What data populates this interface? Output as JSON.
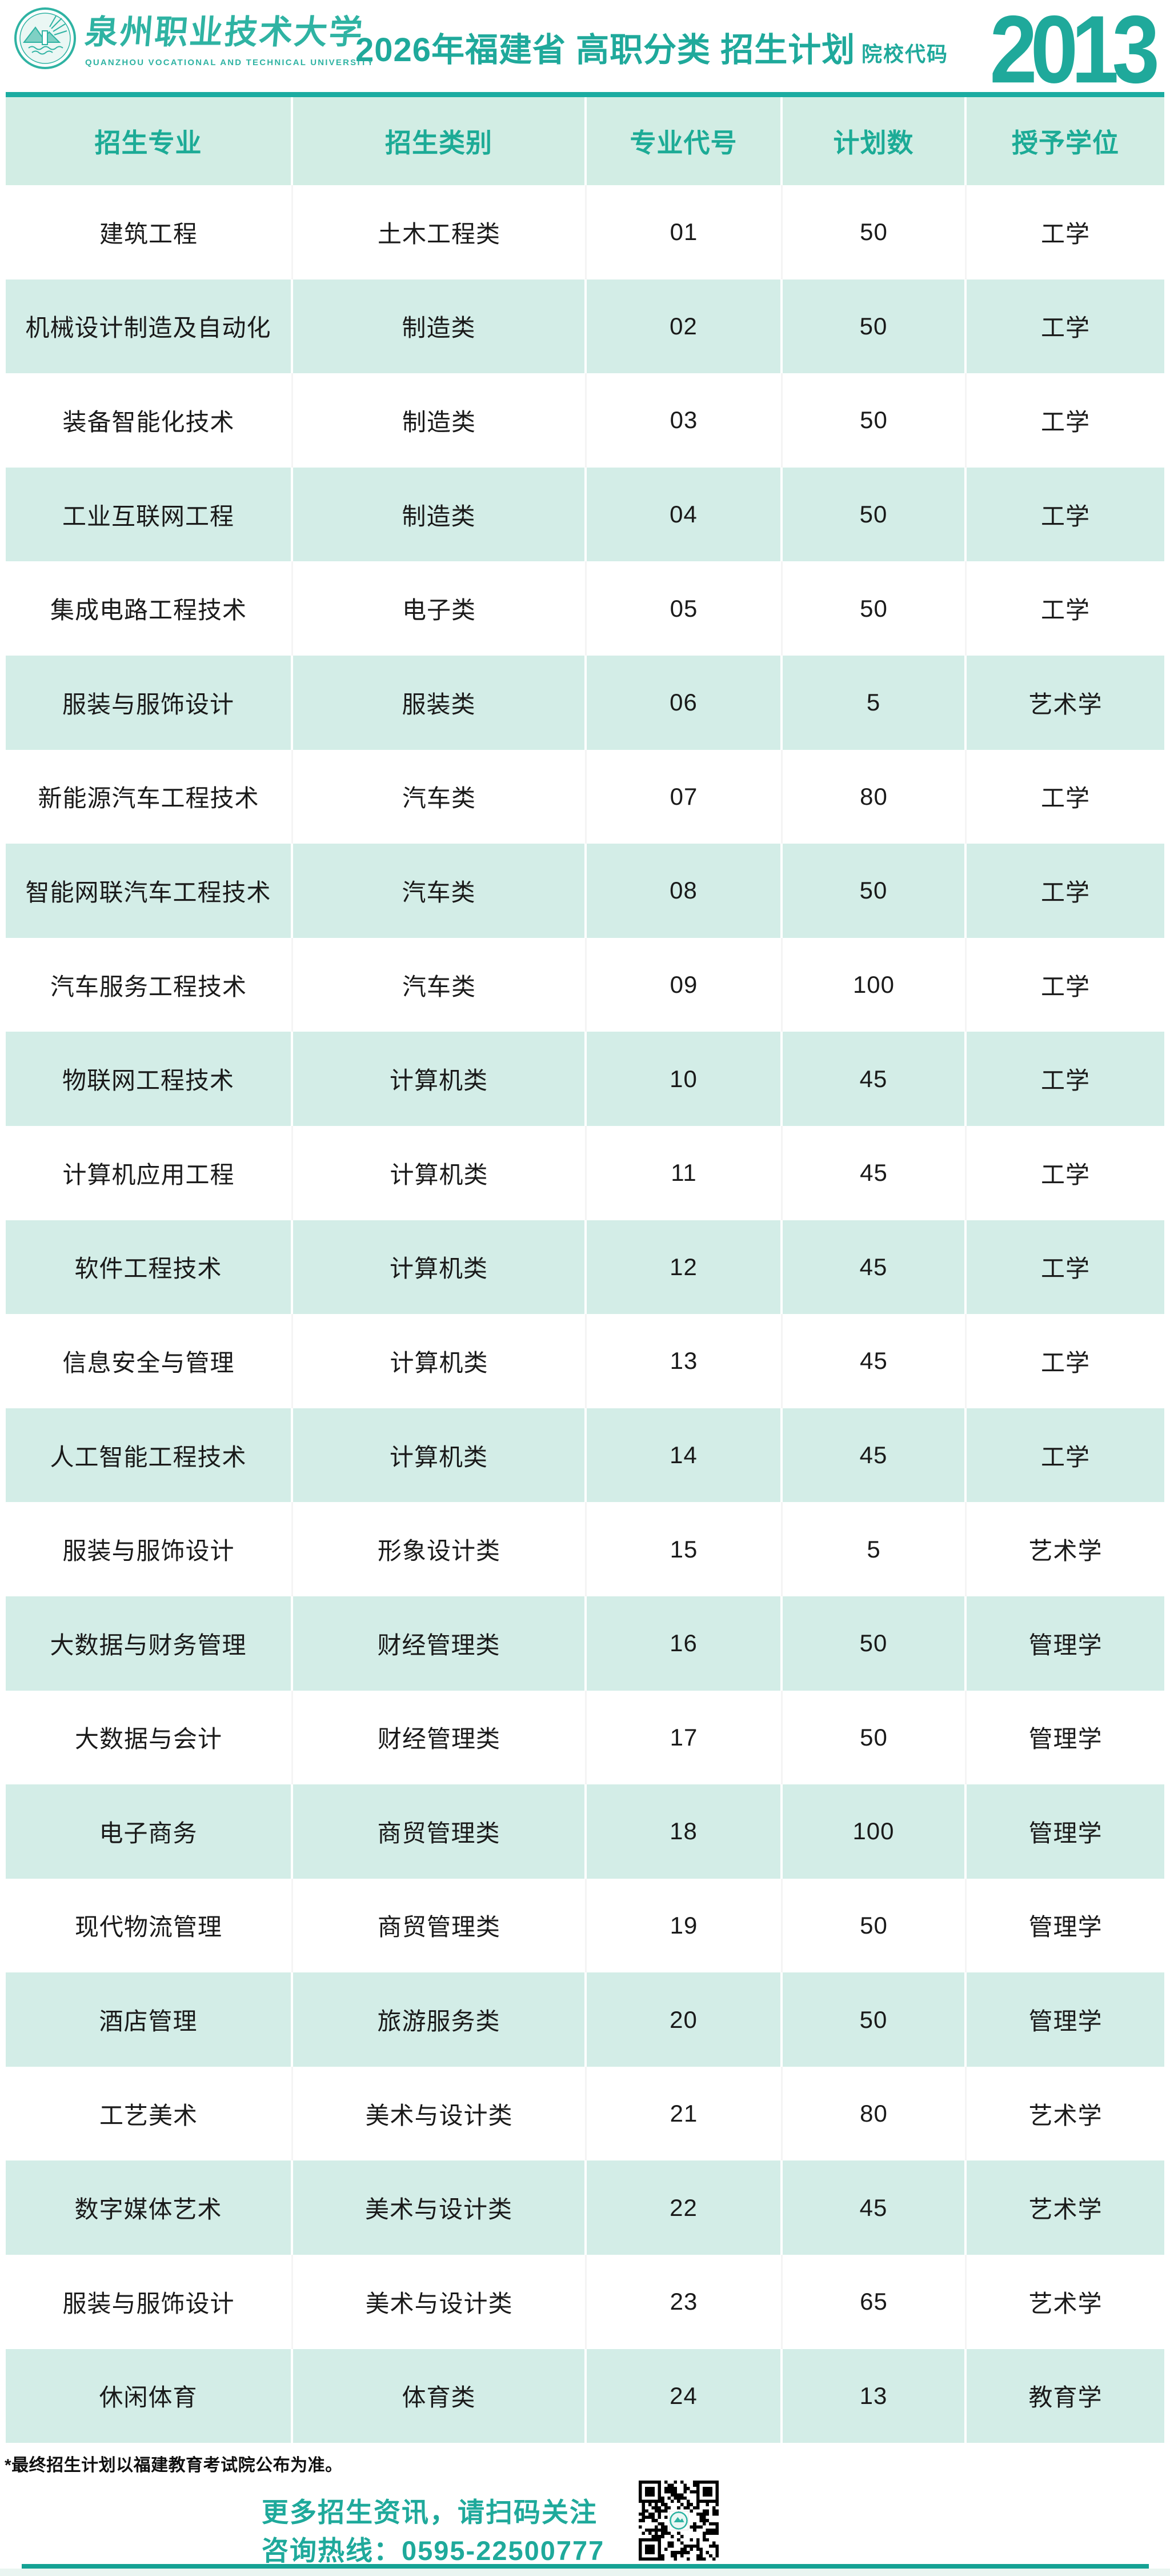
{
  "header": {
    "university_name": "泉州职业技术大学",
    "university_name_en": "QUANZHOU VOCATIONAL AND TECHNICAL UNIVERSITY",
    "title": "2026年福建省 高职分类 招生计划",
    "code_label": "院校代码",
    "code_value": "2013"
  },
  "table": {
    "columns": [
      "招生专业",
      "招生类别",
      "专业代号",
      "计划数",
      "授予学位"
    ],
    "rows": [
      {
        "major": "建筑工程",
        "category": "土木工程类",
        "code": "01",
        "plan": "50",
        "degree": "工学"
      },
      {
        "major": "机械设计制造及自动化",
        "category": "制造类",
        "code": "02",
        "plan": "50",
        "degree": "工学"
      },
      {
        "major": "装备智能化技术",
        "category": "制造类",
        "code": "03",
        "plan": "50",
        "degree": "工学"
      },
      {
        "major": "工业互联网工程",
        "category": "制造类",
        "code": "04",
        "plan": "50",
        "degree": "工学"
      },
      {
        "major": "集成电路工程技术",
        "category": "电子类",
        "code": "05",
        "plan": "50",
        "degree": "工学"
      },
      {
        "major": "服装与服饰设计",
        "category": "服装类",
        "code": "06",
        "plan": "5",
        "degree": "艺术学"
      },
      {
        "major": "新能源汽车工程技术",
        "category": "汽车类",
        "code": "07",
        "plan": "80",
        "degree": "工学"
      },
      {
        "major": "智能网联汽车工程技术",
        "category": "汽车类",
        "code": "08",
        "plan": "50",
        "degree": "工学"
      },
      {
        "major": "汽车服务工程技术",
        "category": "汽车类",
        "code": "09",
        "plan": "100",
        "degree": "工学"
      },
      {
        "major": "物联网工程技术",
        "category": "计算机类",
        "code": "10",
        "plan": "45",
        "degree": "工学"
      },
      {
        "major": "计算机应用工程",
        "category": "计算机类",
        "code": "11",
        "plan": "45",
        "degree": "工学"
      },
      {
        "major": "软件工程技术",
        "category": "计算机类",
        "code": "12",
        "plan": "45",
        "degree": "工学"
      },
      {
        "major": "信息安全与管理",
        "category": "计算机类",
        "code": "13",
        "plan": "45",
        "degree": "工学"
      },
      {
        "major": "人工智能工程技术",
        "category": "计算机类",
        "code": "14",
        "plan": "45",
        "degree": "工学"
      },
      {
        "major": "服装与服饰设计",
        "category": "形象设计类",
        "code": "15",
        "plan": "5",
        "degree": "艺术学"
      },
      {
        "major": "大数据与财务管理",
        "category": "财经管理类",
        "code": "16",
        "plan": "50",
        "degree": "管理学"
      },
      {
        "major": "大数据与会计",
        "category": "财经管理类",
        "code": "17",
        "plan": "50",
        "degree": "管理学"
      },
      {
        "major": "电子商务",
        "category": "商贸管理类",
        "code": "18",
        "plan": "100",
        "degree": "管理学"
      },
      {
        "major": "现代物流管理",
        "category": "商贸管理类",
        "code": "19",
        "plan": "50",
        "degree": "管理学"
      },
      {
        "major": "酒店管理",
        "category": "旅游服务类",
        "code": "20",
        "plan": "50",
        "degree": "管理学"
      },
      {
        "major": "工艺美术",
        "category": "美术与设计类",
        "code": "21",
        "plan": "80",
        "degree": "艺术学"
      },
      {
        "major": "数字媒体艺术",
        "category": "美术与设计类",
        "code": "22",
        "plan": "45",
        "degree": "艺术学"
      },
      {
        "major": "服装与服饰设计",
        "category": "美术与设计类",
        "code": "23",
        "plan": "65",
        "degree": "艺术学"
      },
      {
        "major": "休闲体育",
        "category": "体育类",
        "code": "24",
        "plan": "13",
        "degree": "教育学"
      }
    ]
  },
  "footnote": "*最终招生计划以福建教育考试院公布为准。",
  "footer": {
    "line1": "更多招生资讯，请扫码关注",
    "line2": "咨询热线：0595-22500777",
    "qr_icon": "qr-code-with-university-seal"
  },
  "colors": {
    "teal": "#1FA99B",
    "teal_logo": "#2FB3A3",
    "rule_teal": "#1BACA1",
    "header_band": "#D2EDE4",
    "row_mint": "#D3EDE7",
    "text_dark": "#1A1A1A"
  }
}
